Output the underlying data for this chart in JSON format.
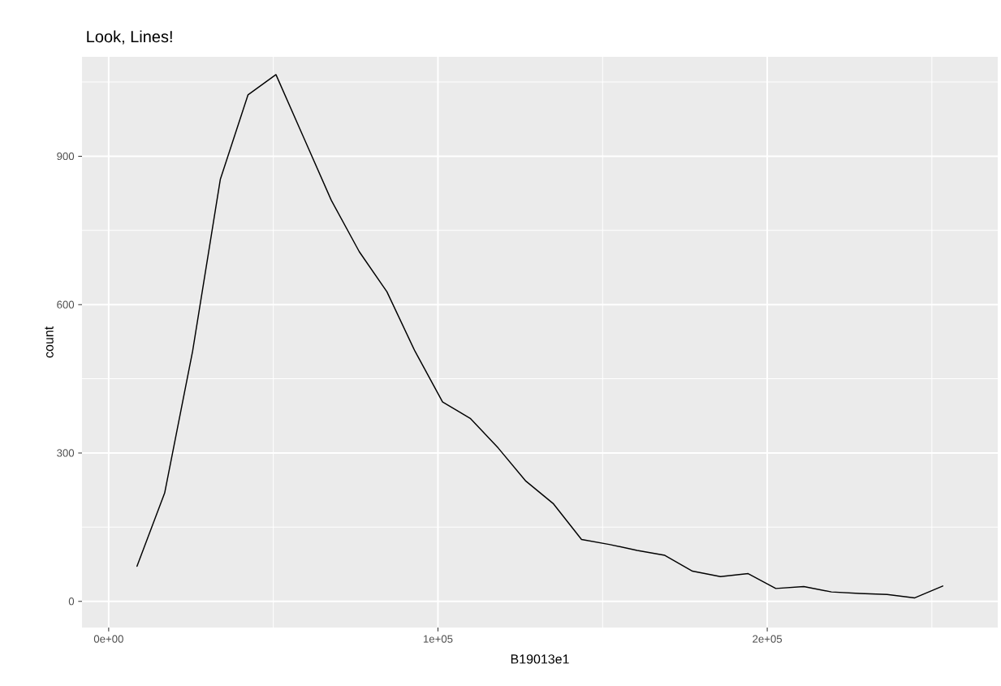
{
  "chart_data": {
    "type": "line",
    "title": "Look, Lines!",
    "xlabel": "B19013e1",
    "ylabel": "count",
    "x": [
      8600,
      17000,
      25500,
      33900,
      42300,
      50800,
      59200,
      67600,
      76100,
      84500,
      93000,
      101400,
      109800,
      118300,
      126700,
      135100,
      143600,
      152000,
      160500,
      168900,
      177300,
      185800,
      194200,
      202600,
      211100,
      219500,
      228000,
      236400,
      244800,
      253300
    ],
    "series": [
      {
        "color": "#000000",
        "values": [
          71,
          219,
          506,
          853,
          1024,
          1065,
          938,
          811,
          707,
          626,
          506,
          403,
          370,
          310,
          243,
          197,
          125,
          115,
          103,
          93,
          61,
          50,
          56,
          26,
          30,
          19,
          16,
          14,
          7,
          31
        ]
      }
    ],
    "xlim": [
      -8100,
      270000
    ],
    "ylim": [
      -53,
      1101
    ],
    "xticks": [
      {
        "value": 0,
        "label": "0e+00"
      },
      {
        "value": 100000,
        "label": "1e+05"
      },
      {
        "value": 200000,
        "label": "2e+05"
      }
    ],
    "yticks": [
      0,
      300,
      600,
      900
    ],
    "grid": true,
    "marker": "none",
    "line_style": "solid"
  }
}
